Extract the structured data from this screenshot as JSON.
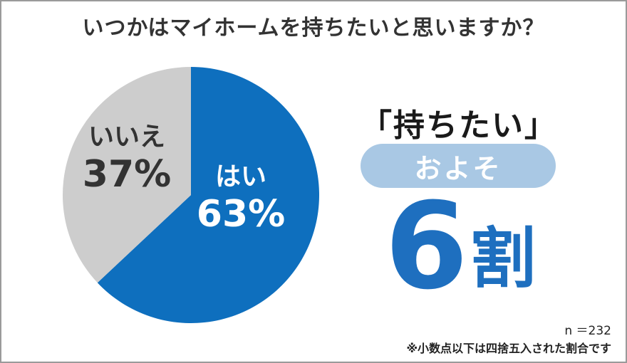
{
  "title": "いつかはマイホームを持ちたいと思いますか？",
  "chart_data": {
    "type": "pie",
    "slices": [
      {
        "label": "はい",
        "value": 63,
        "value_text": "63%",
        "color": "#0e6fbe"
      },
      {
        "label": "いいえ",
        "value": 37,
        "value_text": "37%",
        "color": "#cdcdcd"
      }
    ]
  },
  "summary": {
    "headline": "「持ちたい」",
    "pill": "およそ",
    "big_value": "6",
    "big_unit": "割"
  },
  "sample_size": "n ＝232",
  "footnote": "※小数点以下は四捨五入された割合です",
  "colors": {
    "accent": "#1e6fbf",
    "pill": "#a9c8e4",
    "border": "#9a9a9a"
  }
}
